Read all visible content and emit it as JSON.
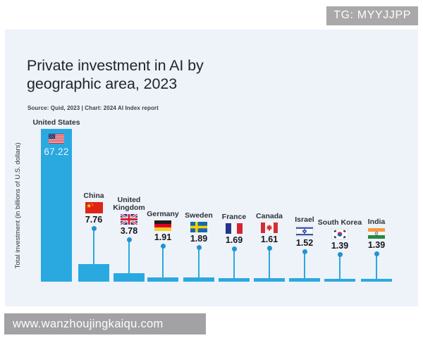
{
  "watermark": {
    "badge_text": "TG: MYYJJPP",
    "url": "www.wanzhoujingkaiqu.com"
  },
  "chart_data": {
    "type": "bar",
    "title": "Private investment in AI by geographic area, 2023",
    "source": "Source: Quid, 2023 | Chart: 2024 AI Index report",
    "ylabel": "Total investment (in billions of U.S. dollars)",
    "ylim": [
      0,
      67.22
    ],
    "grid": false,
    "legend": "none",
    "categories": [
      "United States",
      "China",
      "United Kingdom",
      "Germany",
      "Sweden",
      "France",
      "Canada",
      "Israel",
      "South Korea",
      "India"
    ],
    "values": [
      67.22,
      7.76,
      3.78,
      1.91,
      1.89,
      1.69,
      1.61,
      1.52,
      1.39,
      1.39
    ],
    "value_labels": [
      "67.22",
      "7.76",
      "3.78",
      "1.91",
      "1.89",
      "1.69",
      "1.61",
      "1.52",
      "1.39",
      "1.39"
    ],
    "flags": [
      "us",
      "cn",
      "gb",
      "de",
      "se",
      "fr",
      "ca",
      "il",
      "kr",
      "in"
    ],
    "bar_color": "#2aa9e1",
    "dot_color": "#1f93d1",
    "background_color": "#eef2f9"
  }
}
